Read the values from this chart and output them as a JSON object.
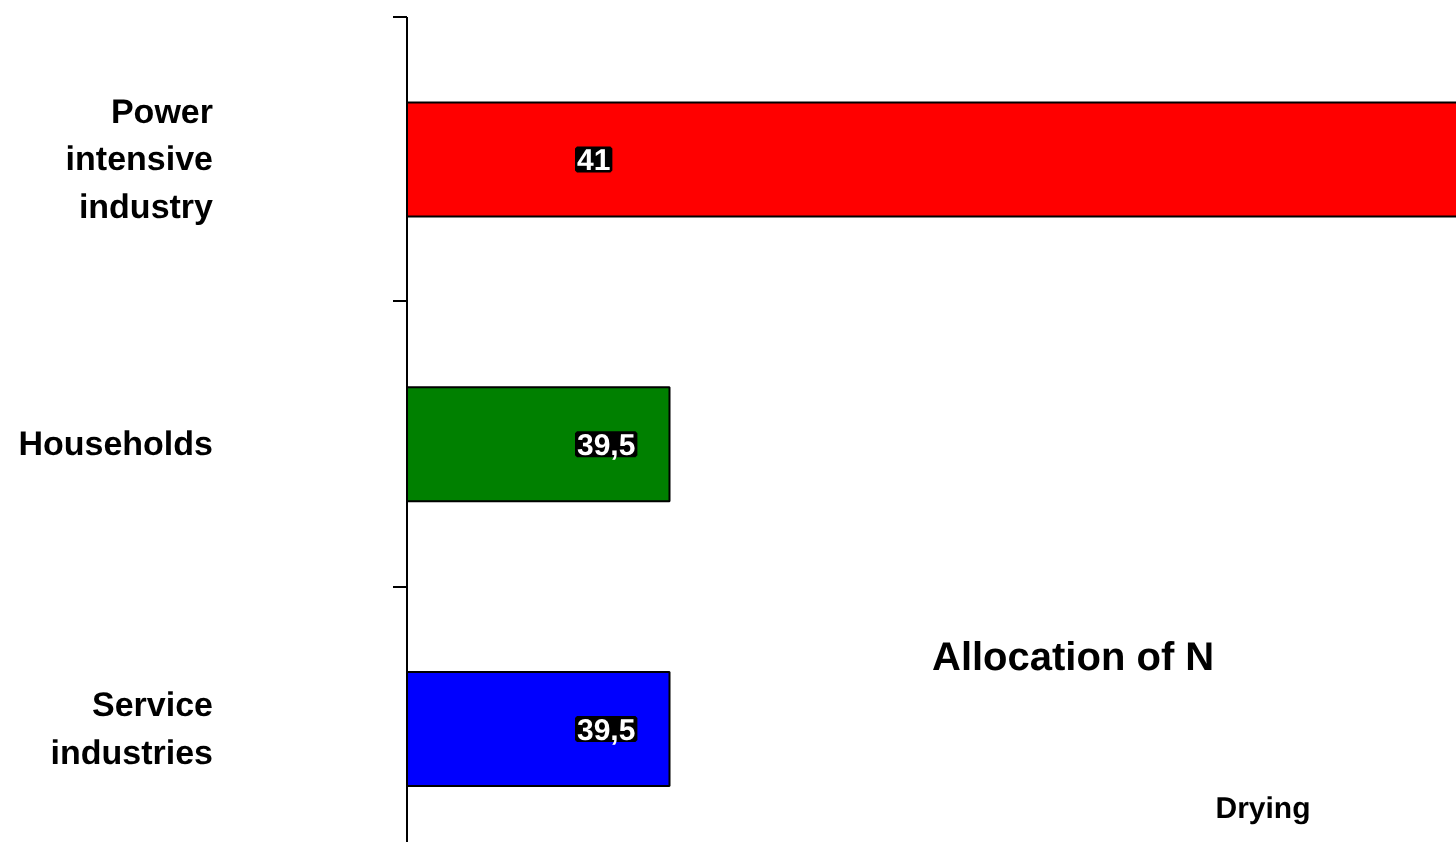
{
  "chart_data": {
    "type": "bar",
    "orientation": "horizontal",
    "categories": [
      "Power intensive industry",
      "Households",
      "Service industries"
    ],
    "values": [
      41,
      39.5,
      39.5
    ],
    "colors": [
      "#ff0000",
      "#008000",
      "#0000ff"
    ],
    "value_labels": [
      "41",
      "39,5",
      "39,5"
    ],
    "xlim": [
      39,
      41
    ],
    "tick_labels": "y",
    "grid": false,
    "annotations": [
      "Allocation of N",
      "Drying"
    ]
  }
}
